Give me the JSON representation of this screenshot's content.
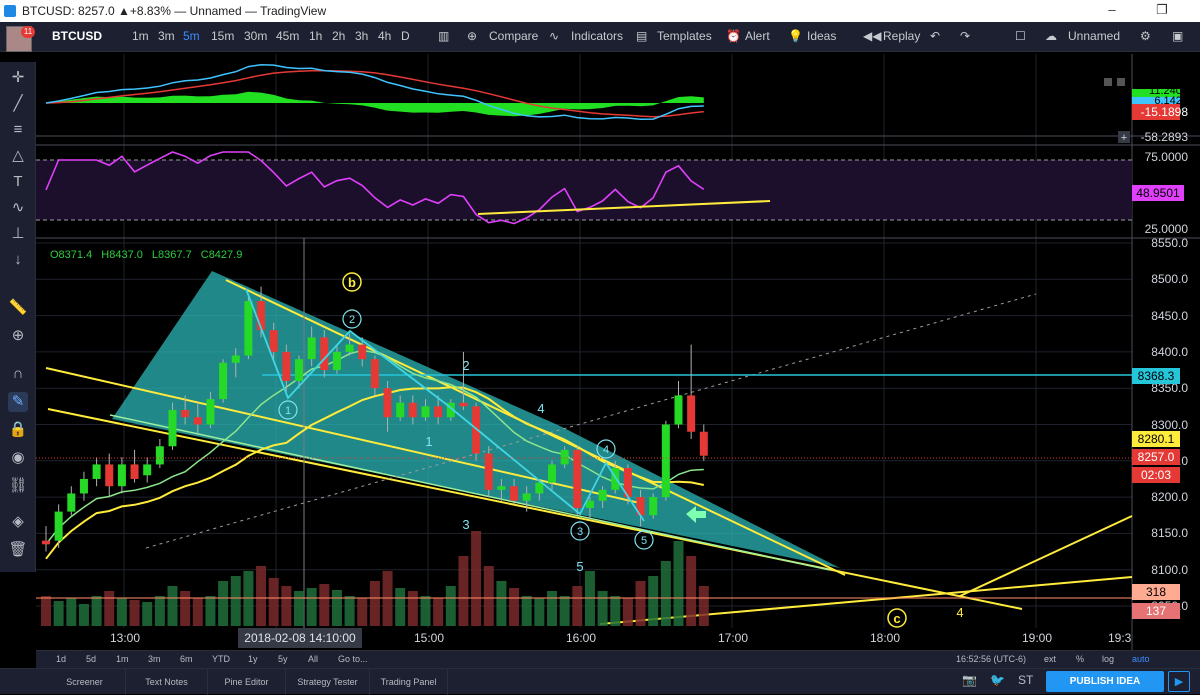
{
  "window": {
    "title": "BTCUSD: 8257.0 ▲+8.83% — Unnamed — TradingView",
    "minimize": "–",
    "restore": "❐"
  },
  "user": {
    "notification_count": "11"
  },
  "toolbar": {
    "symbol": "BTCUSD",
    "intervals": [
      "1m",
      "3m",
      "5m",
      "15m",
      "30m",
      "45m",
      "1h",
      "2h",
      "3h",
      "4h",
      "D"
    ],
    "active_interval": "5m",
    "compare": "Compare",
    "indicators": "Indicators",
    "templates": "Templates",
    "alert": "Alert",
    "ideas": "Ideas",
    "replay": "Replay",
    "layout_name": "Unnamed"
  },
  "legend": {
    "open": "O8371.4",
    "high": "H8437.0",
    "low": "L8367.7",
    "close": "C8427.9"
  },
  "price_axis": {
    "macd_labels": [
      "11.2408",
      "6.1422",
      "-15.1898"
    ],
    "sep_label": "-58.2893",
    "rsi_labels": [
      "75.0000",
      "48.9501",
      "25.0000"
    ],
    "main_ticks": [
      "8550.0",
      "8500.0",
      "8450.0",
      "8400.0",
      "8350.0",
      "8300.0",
      "8250.0",
      "8200.0",
      "8150.0",
      "8100.0",
      "8050.0"
    ],
    "price_tags": [
      {
        "value": "8368.3",
        "color": "#26c6da",
        "text_color": "#000000"
      },
      {
        "value": "8280.1",
        "color": "#ffeb3b",
        "text_color": "#000000"
      },
      {
        "value": "8257.0",
        "color": "#e53935",
        "text_color": "#ffffff"
      },
      {
        "value": "02:03",
        "color": "#e53935",
        "text_color": "#ffffff"
      },
      {
        "value": "318",
        "color": "#ffab91",
        "text_color": "#000000"
      },
      {
        "value": "137",
        "color": "#e57373",
        "text_color": "#ffffff"
      }
    ]
  },
  "time_axis": {
    "labels": [
      "13:00",
      "15:00",
      "16:00",
      "17:00",
      "18:00",
      "19:00",
      "19:3"
    ],
    "cursor": "2018-02-08 14:10:00"
  },
  "annotations": {
    "wave_b": "b",
    "wave_c": "c",
    "circled": [
      "1",
      "2",
      "3",
      "4",
      "5"
    ],
    "plain": [
      "1",
      "2",
      "3",
      "4",
      "5",
      "4"
    ]
  },
  "bottom_bar": {
    "ranges": [
      "1d",
      "5d",
      "1m",
      "3m",
      "6m",
      "YTD",
      "1y",
      "5y",
      "All",
      "Go to..."
    ],
    "clock": "16:52:56 (UTC-6)",
    "options": [
      "ext",
      "%",
      "log",
      "auto"
    ]
  },
  "panels": [
    "Screener",
    "Text Notes",
    "Pine Editor",
    "Strategy Tester",
    "Trading Panel"
  ],
  "publish": "PUBLISH IDEA",
  "chart_data": {
    "type": "candlestick",
    "symbol": "BTCUSD",
    "interval": "5m",
    "ohlc_legend": {
      "open": 8371.4,
      "high": 8437.0,
      "low": 8367.7,
      "close": 8427.9
    },
    "last_price": 8257.0,
    "change_pct": 8.83,
    "horizontal_level": 8368.3,
    "moving_average_last": 8280.1,
    "rsi_last": 48.9501,
    "rsi_bands": [
      75,
      25
    ],
    "macd_last": [
      11.2408,
      6.1422,
      -15.1898
    ],
    "volume_last": [
      318,
      137
    ],
    "y_range": [
      8050,
      8550
    ],
    "x_range": [
      "12:30",
      "19:30"
    ],
    "candles": [
      {
        "t": "12:25",
        "o": 8140,
        "h": 8160,
        "l": 8125,
        "c": 8135
      },
      {
        "t": "12:30",
        "o": 8140,
        "h": 8190,
        "l": 8130,
        "c": 8180
      },
      {
        "t": "12:35",
        "o": 8180,
        "h": 8215,
        "l": 8175,
        "c": 8205
      },
      {
        "t": "12:40",
        "o": 8205,
        "h": 8235,
        "l": 8195,
        "c": 8225
      },
      {
        "t": "12:45",
        "o": 8225,
        "h": 8255,
        "l": 8215,
        "c": 8245
      },
      {
        "t": "12:50",
        "o": 8245,
        "h": 8260,
        "l": 8200,
        "c": 8215
      },
      {
        "t": "12:55",
        "o": 8215,
        "h": 8255,
        "l": 8205,
        "c": 8245
      },
      {
        "t": "13:00",
        "o": 8245,
        "h": 8265,
        "l": 8220,
        "c": 8225
      },
      {
        "t": "13:05",
        "o": 8230,
        "h": 8255,
        "l": 8220,
        "c": 8245
      },
      {
        "t": "13:10",
        "o": 8245,
        "h": 8280,
        "l": 8240,
        "c": 8270
      },
      {
        "t": "13:15",
        "o": 8270,
        "h": 8330,
        "l": 8265,
        "c": 8320
      },
      {
        "t": "13:20",
        "o": 8320,
        "h": 8340,
        "l": 8300,
        "c": 8310
      },
      {
        "t": "13:25",
        "o": 8310,
        "h": 8330,
        "l": 8285,
        "c": 8300
      },
      {
        "t": "13:30",
        "o": 8300,
        "h": 8345,
        "l": 8295,
        "c": 8335
      },
      {
        "t": "13:35",
        "o": 8335,
        "h": 8390,
        "l": 8330,
        "c": 8385
      },
      {
        "t": "13:40",
        "o": 8385,
        "h": 8405,
        "l": 8365,
        "c": 8395
      },
      {
        "t": "13:45",
        "o": 8395,
        "h": 8480,
        "l": 8390,
        "c": 8470
      },
      {
        "t": "13:50",
        "o": 8470,
        "h": 8490,
        "l": 8420,
        "c": 8430
      },
      {
        "t": "13:55",
        "o": 8430,
        "h": 8440,
        "l": 8390,
        "c": 8400
      },
      {
        "t": "14:00",
        "o": 8400,
        "h": 8410,
        "l": 8345,
        "c": 8360
      },
      {
        "t": "14:05",
        "o": 8360,
        "h": 8395,
        "l": 8350,
        "c": 8390
      },
      {
        "t": "14:10",
        "o": 8390,
        "h": 8435,
        "l": 8380,
        "c": 8420
      },
      {
        "t": "14:15",
        "o": 8420,
        "h": 8430,
        "l": 8365,
        "c": 8375
      },
      {
        "t": "14:20",
        "o": 8375,
        "h": 8410,
        "l": 8370,
        "c": 8400
      },
      {
        "t": "14:25",
        "o": 8400,
        "h": 8425,
        "l": 8395,
        "c": 8410
      },
      {
        "t": "14:30",
        "o": 8410,
        "h": 8420,
        "l": 8380,
        "c": 8390
      },
      {
        "t": "14:35",
        "o": 8390,
        "h": 8395,
        "l": 8340,
        "c": 8350
      },
      {
        "t": "14:40",
        "o": 8350,
        "h": 8360,
        "l": 8290,
        "c": 8310
      },
      {
        "t": "14:45",
        "o": 8310,
        "h": 8340,
        "l": 8305,
        "c": 8330
      },
      {
        "t": "14:50",
        "o": 8330,
        "h": 8340,
        "l": 8300,
        "c": 8310
      },
      {
        "t": "14:55",
        "o": 8310,
        "h": 8335,
        "l": 8305,
        "c": 8325
      },
      {
        "t": "15:00",
        "o": 8325,
        "h": 8340,
        "l": 8300,
        "c": 8310
      },
      {
        "t": "15:05",
        "o": 8310,
        "h": 8335,
        "l": 8305,
        "c": 8330
      },
      {
        "t": "15:10",
        "o": 8330,
        "h": 8400,
        "l": 8320,
        "c": 8325
      },
      {
        "t": "15:15",
        "o": 8325,
        "h": 8330,
        "l": 8250,
        "c": 8260
      },
      {
        "t": "15:20",
        "o": 8260,
        "h": 8270,
        "l": 8200,
        "c": 8210
      },
      {
        "t": "15:25",
        "o": 8210,
        "h": 8225,
        "l": 8195,
        "c": 8215
      },
      {
        "t": "15:30",
        "o": 8215,
        "h": 8225,
        "l": 8190,
        "c": 8195
      },
      {
        "t": "15:35",
        "o": 8195,
        "h": 8215,
        "l": 8180,
        "c": 8205
      },
      {
        "t": "15:40",
        "o": 8205,
        "h": 8225,
        "l": 8195,
        "c": 8220
      },
      {
        "t": "15:45",
        "o": 8220,
        "h": 8250,
        "l": 8210,
        "c": 8245
      },
      {
        "t": "15:50",
        "o": 8245,
        "h": 8270,
        "l": 8240,
        "c": 8265
      },
      {
        "t": "15:55",
        "o": 8265,
        "h": 8270,
        "l": 8175,
        "c": 8185
      },
      {
        "t": "16:00",
        "o": 8185,
        "h": 8200,
        "l": 8170,
        "c": 8195
      },
      {
        "t": "16:05",
        "o": 8195,
        "h": 8215,
        "l": 8185,
        "c": 8210
      },
      {
        "t": "16:10",
        "o": 8210,
        "h": 8250,
        "l": 8205,
        "c": 8240
      },
      {
        "t": "16:15",
        "o": 8240,
        "h": 8245,
        "l": 8190,
        "c": 8200
      },
      {
        "t": "16:20",
        "o": 8200,
        "h": 8210,
        "l": 8160,
        "c": 8175
      },
      {
        "t": "16:25",
        "o": 8175,
        "h": 8205,
        "l": 8170,
        "c": 8200
      },
      {
        "t": "16:30",
        "o": 8200,
        "h": 8305,
        "l": 8195,
        "c": 8300
      },
      {
        "t": "16:35",
        "o": 8300,
        "h": 8360,
        "l": 8295,
        "c": 8340
      },
      {
        "t": "16:40",
        "o": 8340,
        "h": 8410,
        "l": 8280,
        "c": 8290
      },
      {
        "t": "16:45",
        "o": 8290,
        "h": 8300,
        "l": 8250,
        "c": 8257
      }
    ],
    "volume": [
      30,
      25,
      28,
      22,
      30,
      35,
      28,
      26,
      24,
      30,
      40,
      35,
      28,
      30,
      45,
      50,
      55,
      60,
      48,
      40,
      35,
      38,
      42,
      36,
      30,
      28,
      45,
      55,
      38,
      35,
      30,
      28,
      40,
      70,
      95,
      60,
      45,
      38,
      30,
      28,
      35,
      30,
      40,
      55,
      35,
      30,
      28,
      45,
      50,
      65,
      85,
      70,
      40
    ]
  }
}
